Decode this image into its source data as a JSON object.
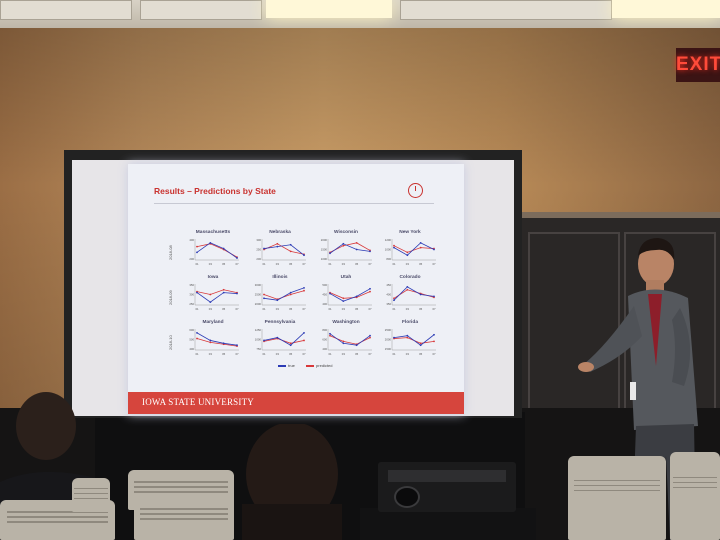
{
  "exit_sign": {
    "label": "EXIT"
  },
  "slide": {
    "title": "Results – Predictions by State",
    "footer": "IOWA STATE UNIVERSITY",
    "legend": [
      {
        "label": "true",
        "color": "#2c3bb5"
      },
      {
        "label": "predicted",
        "color": "#d8383a"
      }
    ],
    "row_labels": [
      "2018-08",
      "2018-09",
      "2018-10"
    ],
    "x_ticks": [
      "01",
      "03",
      "05",
      "07"
    ],
    "colors": {
      "true": "#2c3bb5",
      "predicted": "#d8383a",
      "accent": "#c9322f",
      "footer": "#d6453d"
    }
  },
  "chart_data": {
    "type": "line",
    "title": "Results – Predictions by State",
    "x": [
      "01",
      "03",
      "05",
      "07"
    ],
    "legend": [
      "true",
      "predicted"
    ],
    "panels": [
      {
        "name": "Massachusetts",
        "y_ticks": [
          "400",
          "200"
        ],
        "true": [
          0.35,
          0.85,
          0.55,
          0.05
        ],
        "predicted": [
          0.65,
          0.8,
          0.5,
          0.1
        ]
      },
      {
        "name": "Nebraska",
        "y_ticks": [
          "300",
          "250",
          "200"
        ],
        "true": [
          0.55,
          0.65,
          0.75,
          0.2
        ],
        "predicted": [
          0.5,
          0.8,
          0.4,
          0.25
        ]
      },
      {
        "name": "Wisconsin",
        "y_ticks": [
          "2000",
          "1500",
          "1000"
        ],
        "true": [
          0.3,
          0.8,
          0.5,
          0.4
        ],
        "predicted": [
          0.35,
          0.7,
          0.85,
          0.45
        ]
      },
      {
        "name": "New York",
        "y_ticks": [
          "1200",
          "1000",
          "800"
        ],
        "true": [
          0.6,
          0.2,
          0.85,
          0.5
        ],
        "predicted": [
          0.7,
          0.35,
          0.6,
          0.55
        ]
      },
      {
        "name": "Iowa",
        "y_ticks": [
          "350",
          "300",
          "250"
        ],
        "true": [
          0.6,
          0.1,
          0.6,
          0.55
        ],
        "predicted": [
          0.65,
          0.5,
          0.75,
          0.6
        ]
      },
      {
        "name": "Illinois",
        "y_ticks": [
          "3000",
          "2500",
          "2000"
        ],
        "true": [
          0.3,
          0.2,
          0.6,
          0.85
        ],
        "predicted": [
          0.5,
          0.25,
          0.5,
          0.7
        ]
      },
      {
        "name": "Utah",
        "y_ticks": [
          "500",
          "450",
          "400"
        ],
        "true": [
          0.55,
          0.15,
          0.4,
          0.8
        ],
        "predicted": [
          0.6,
          0.3,
          0.35,
          0.65
        ]
      },
      {
        "name": "Colorado",
        "y_ticks": [
          "450",
          "400",
          "350"
        ],
        "true": [
          0.2,
          0.9,
          0.5,
          0.4
        ],
        "predicted": [
          0.3,
          0.75,
          0.55,
          0.35
        ]
      },
      {
        "name": "Maryland",
        "y_ticks": [
          "600",
          "500",
          "400"
        ],
        "true": [
          0.85,
          0.45,
          0.3,
          0.2
        ],
        "predicted": [
          0.55,
          0.35,
          0.25,
          0.15
        ]
      },
      {
        "name": "Pennsylvania",
        "y_ticks": [
          "1250",
          "1000",
          "750"
        ],
        "true": [
          0.45,
          0.6,
          0.2,
          0.85
        ],
        "predicted": [
          0.4,
          0.55,
          0.3,
          0.45
        ]
      },
      {
        "name": "Washington",
        "y_ticks": [
          "800",
          "600",
          "400"
        ],
        "true": [
          0.8,
          0.3,
          0.2,
          0.7
        ],
        "predicted": [
          0.7,
          0.4,
          0.25,
          0.6
        ]
      },
      {
        "name": "Florida",
        "y_ticks": [
          "2500",
          "2000",
          "1500"
        ],
        "true": [
          0.6,
          0.7,
          0.2,
          0.75
        ],
        "predicted": [
          0.55,
          0.6,
          0.3,
          0.4
        ]
      }
    ]
  }
}
